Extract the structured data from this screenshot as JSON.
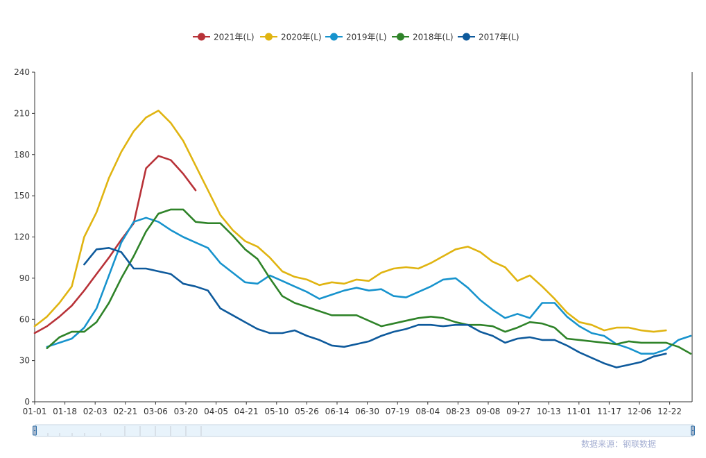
{
  "chart_data": {
    "type": "line",
    "title": "",
    "xlabel": "",
    "ylabel": "",
    "x_ticks": [
      "01-01",
      "01-18",
      "02-03",
      "02-21",
      "03-06",
      "03-20",
      "04-05",
      "04-21",
      "05-10",
      "05-26",
      "06-14",
      "06-30",
      "07-19",
      "08-04",
      "08-23",
      "09-08",
      "09-27",
      "10-13",
      "11-01",
      "11-17",
      "12-06",
      "12-22"
    ],
    "ylim": [
      0,
      240
    ],
    "y_ticks": [
      0,
      30,
      60,
      90,
      120,
      150,
      180,
      210,
      240
    ],
    "grid": false,
    "legend_position": "top-center",
    "series": [
      {
        "name": "2021年(L)",
        "color": "#b83238",
        "start": 0,
        "values": [
          50,
          55,
          62,
          70,
          81,
          93,
          105,
          118,
          130,
          170,
          179,
          176,
          166,
          154
        ]
      },
      {
        "name": "2020年(L)",
        "color": "#e0b411",
        "start": 0,
        "values": [
          55,
          62,
          72,
          84,
          120,
          138,
          163,
          182,
          197,
          207,
          212,
          203,
          190,
          172,
          154,
          136,
          125,
          117,
          113,
          105,
          95,
          91,
          89,
          85,
          87,
          86,
          89,
          88,
          94,
          97,
          98,
          97,
          101,
          106,
          111,
          113,
          109,
          102,
          98,
          88,
          92,
          84,
          75,
          65,
          58,
          56,
          52,
          54,
          54,
          52,
          51,
          52
        ]
      },
      {
        "name": "2019年(L)",
        "color": "#1793cd",
        "start": 1,
        "values": [
          40,
          43,
          46,
          54,
          68,
          92,
          116,
          131,
          134,
          131,
          125,
          120,
          116,
          112,
          101,
          94,
          87,
          86,
          92,
          88,
          84,
          80,
          75,
          78,
          81,
          83,
          81,
          82,
          77,
          76,
          80,
          84,
          89,
          90,
          83,
          74,
          67,
          61,
          64,
          61,
          72,
          72,
          62,
          55,
          50,
          48,
          42,
          39,
          35,
          35,
          38,
          45,
          48
        ]
      },
      {
        "name": "2018年(L)",
        "color": "#2f8329",
        "start": 1,
        "values": [
          39,
          47,
          51,
          51,
          58,
          72,
          90,
          106,
          124,
          137,
          140,
          140,
          131,
          130,
          130,
          121,
          111,
          104,
          90,
          77,
          72,
          69,
          66,
          63,
          63,
          63,
          59,
          55,
          57,
          59,
          61,
          62,
          61,
          58,
          56,
          56,
          55,
          51,
          54,
          58,
          57,
          54,
          46,
          45,
          44,
          43,
          42,
          44,
          43,
          43,
          43,
          40,
          35
        ]
      },
      {
        "name": "2017年(L)",
        "color": "#0e5a9c",
        "start": 4,
        "values": [
          100,
          111,
          112,
          109,
          97,
          97,
          95,
          93,
          86,
          84,
          81,
          68,
          63,
          58,
          53,
          50,
          50,
          52,
          48,
          45,
          41,
          40,
          42,
          44,
          48,
          51,
          53,
          56,
          56,
          55,
          56,
          56,
          51,
          48,
          43,
          46,
          47,
          45,
          45,
          41,
          36,
          32,
          28,
          25,
          27,
          29,
          33,
          35
        ]
      }
    ],
    "source": "数据来源：钢联数据"
  }
}
